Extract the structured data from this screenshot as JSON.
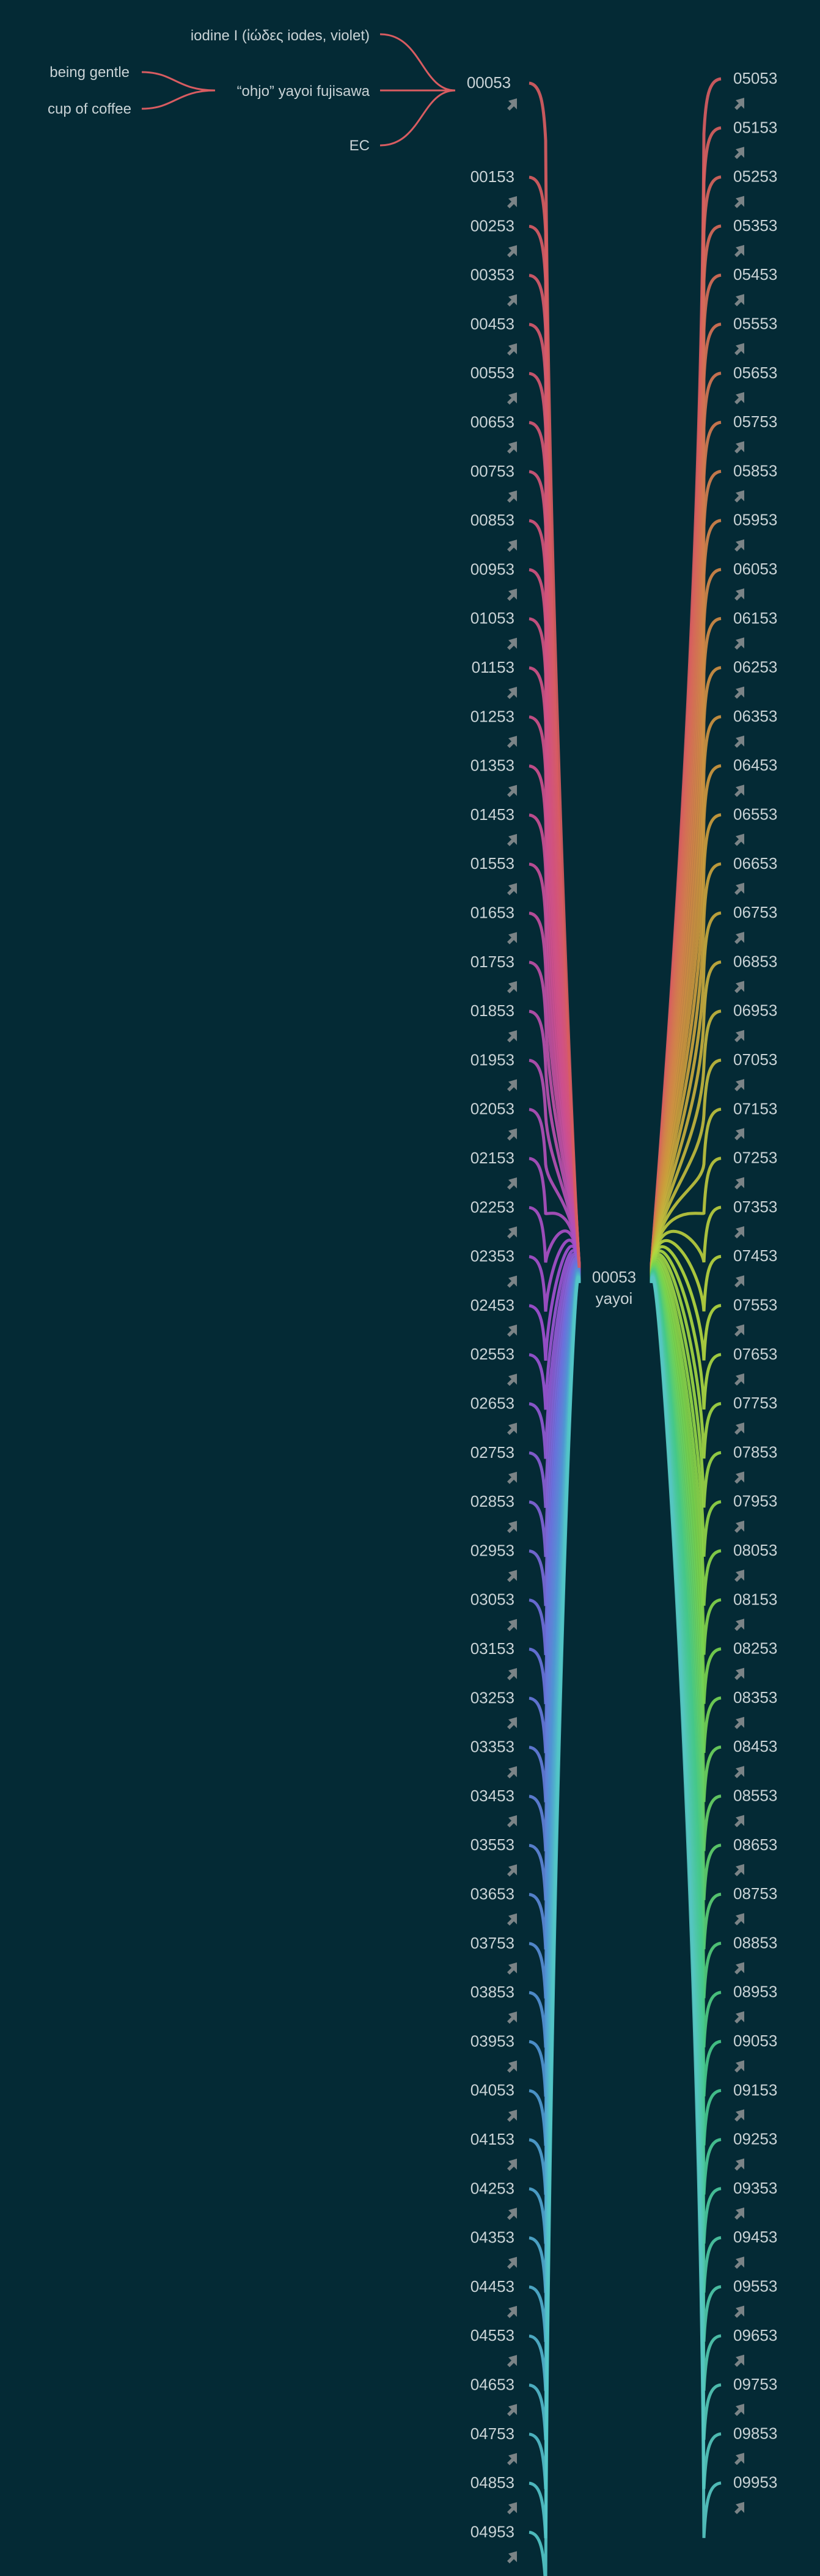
{
  "colors": {
    "background": "#042a35",
    "label": "#c9d3d6",
    "arrow": "#7a8386",
    "red": "#d85c61"
  },
  "origin": {
    "first_line": "iodine I (ἰώδες iodes, violet)",
    "sources": [
      "being gentle",
      "cup of coffee"
    ],
    "middle": "“ohjo” yayoi fujisawa",
    "last_line": "EC",
    "root": "00053"
  },
  "center": {
    "line1": "00053",
    "line2": "yayoi"
  },
  "left_column": [
    "00153",
    "00253",
    "00353",
    "00453",
    "00553",
    "00653",
    "00753",
    "00853",
    "00953",
    "01053",
    "01153",
    "01253",
    "01353",
    "01453",
    "01553",
    "01653",
    "01753",
    "01853",
    "01953",
    "02053",
    "02153",
    "02253",
    "02353",
    "02453",
    "02553",
    "02653",
    "02753",
    "02853",
    "02953",
    "03053",
    "03153",
    "03253",
    "03353",
    "03453",
    "03553",
    "03653",
    "03753",
    "03853",
    "03953",
    "04053",
    "04153",
    "04253",
    "04353",
    "04453",
    "04553",
    "04653",
    "04753",
    "04853",
    "04953"
  ],
  "right_column": [
    "05053",
    "05153",
    "05253",
    "05353",
    "05453",
    "05553",
    "05653",
    "05753",
    "05853",
    "05953",
    "06053",
    "06153",
    "06253",
    "06353",
    "06453",
    "06553",
    "06653",
    "06753",
    "06853",
    "06953",
    "07053",
    "07153",
    "07253",
    "07353",
    "07453",
    "07553",
    "07653",
    "07753",
    "07853",
    "07953",
    "08053",
    "08153",
    "08253",
    "08353",
    "08453",
    "08553",
    "08653",
    "08753",
    "08853",
    "08953",
    "09053",
    "09153",
    "09253",
    "09353",
    "09453",
    "09553",
    "09653",
    "09753",
    "09853",
    "09953"
  ],
  "icons": {
    "arrow": "arrow-up-right-icon"
  }
}
